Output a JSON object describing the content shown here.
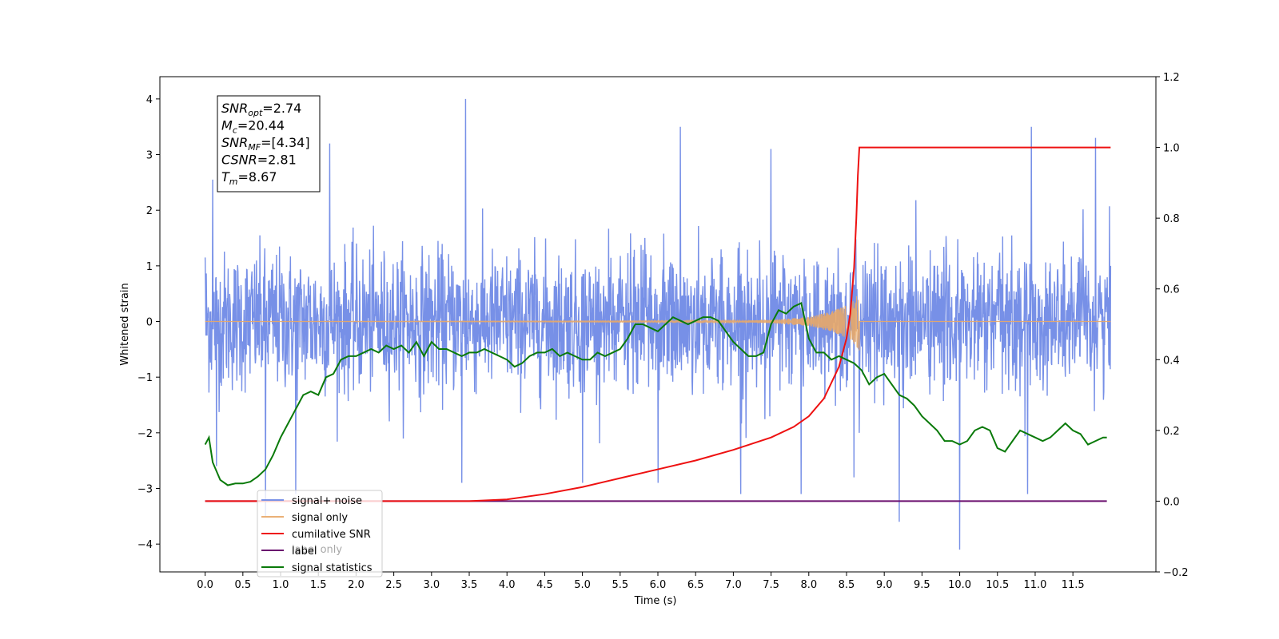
{
  "chart_data": {
    "type": "line",
    "title": "",
    "xlabel": "Time (s)",
    "ylabel": "Whitened strain",
    "xlim": [
      -0.6,
      12.6
    ],
    "ylim": [
      -4.5,
      4.4
    ],
    "y2lim": [
      -0.2,
      1.2
    ],
    "x_ticks": [
      0.0,
      0.5,
      1.0,
      1.5,
      2.0,
      2.5,
      3.0,
      3.5,
      4.0,
      4.5,
      5.0,
      5.5,
      6.0,
      6.5,
      7.0,
      7.5,
      8.0,
      8.5,
      9.0,
      9.5,
      10.0,
      10.5,
      11.0,
      11.5
    ],
    "x_tick_labels": [
      "0.0",
      "0.5",
      "1.0",
      "1.5",
      "2.0",
      "2.5",
      "3.0",
      "3.5",
      "4.0",
      "4.5",
      "5.0",
      "5.5",
      "6.0",
      "6.5",
      "7.0",
      "7.5",
      "8.0",
      "8.5",
      "9.0",
      "9.5",
      "10.0",
      "10.5",
      "11.0",
      "11.5"
    ],
    "y_ticks": [
      -4,
      -3,
      -2,
      -1,
      0,
      1,
      2,
      3,
      4
    ],
    "y_tick_labels": [
      "−4",
      "−3",
      "−2",
      "−1",
      "0",
      "1",
      "2",
      "3",
      "4"
    ],
    "y2_ticks": [
      -0.2,
      0.0,
      0.2,
      0.4,
      0.6,
      0.8,
      1.0,
      1.2
    ],
    "y2_tick_labels": [
      "−0.2",
      "0.0",
      "0.2",
      "0.4",
      "0.6",
      "0.8",
      "1.0",
      "1.2"
    ],
    "grid": false,
    "legend_position": "lower-left",
    "annotation_lines": [
      {
        "base": "SNR",
        "sub": "opt",
        "rest": "=2.74"
      },
      {
        "base": "M",
        "sub": "c",
        "rest": "=20.44"
      },
      {
        "base": "SNR",
        "sub": "MF",
        "rest": "=[4.34]"
      },
      {
        "base": "CSNR",
        "sub": "",
        "rest": "=2.81"
      },
      {
        "base": "T",
        "sub": "m",
        "rest": "=8.67"
      }
    ],
    "series": [
      {
        "name": "signal+ noise",
        "axis": "left",
        "color": "#6b87e5",
        "note_shape": "whitened noise, mostly within ±1.5 with spikes",
        "spikes": [
          [
            0.0,
            1.15
          ],
          [
            0.0,
            -0.55
          ],
          [
            0.1,
            2.55
          ],
          [
            0.15,
            -2.6
          ],
          [
            0.8,
            -3.5
          ],
          [
            1.2,
            -3.1
          ],
          [
            1.65,
            3.2
          ],
          [
            3.45,
            4.0
          ],
          [
            3.4,
            -2.9
          ],
          [
            5.0,
            -2.9
          ],
          [
            6.0,
            -2.9
          ],
          [
            6.3,
            3.5
          ],
          [
            7.1,
            -3.1
          ],
          [
            7.5,
            3.1
          ],
          [
            7.9,
            -3.1
          ],
          [
            8.6,
            -2.8
          ],
          [
            9.2,
            -3.6
          ],
          [
            10.0,
            -4.1
          ],
          [
            10.9,
            -3.1
          ],
          [
            10.95,
            3.5
          ],
          [
            11.8,
            3.3
          ],
          [
            12.0,
            1.0
          ],
          [
            12.0,
            -1.5
          ]
        ],
        "x_range": [
          0.0,
          12.0
        ],
        "typical_amplitude": 1.2
      },
      {
        "name": "signal only",
        "axis": "left",
        "color": "#e8a868",
        "x_range": [
          0.0,
          12.0
        ],
        "chirp_peak_time": 8.67,
        "chirp_peak_amplitude": 0.5,
        "amplitude_points": [
          [
            0.0,
            0.0
          ],
          [
            7.0,
            0.01
          ],
          [
            7.5,
            0.03
          ],
          [
            8.0,
            0.08
          ],
          [
            8.3,
            0.18
          ],
          [
            8.55,
            0.32
          ],
          [
            8.67,
            0.52
          ],
          [
            8.7,
            0.0
          ],
          [
            12.0,
            0.0
          ]
        ]
      },
      {
        "name": "cumilative SNR",
        "axis": "right",
        "color": "#ee1111",
        "x": [
          0.0,
          3.5,
          4.0,
          4.5,
          5.0,
          5.5,
          6.0,
          6.5,
          7.0,
          7.5,
          7.8,
          8.0,
          8.2,
          8.4,
          8.5,
          8.55,
          8.6,
          8.63,
          8.65,
          8.67,
          12.0
        ],
        "values": [
          0.0,
          0.0,
          0.005,
          0.02,
          0.04,
          0.065,
          0.09,
          0.115,
          0.145,
          0.18,
          0.21,
          0.24,
          0.29,
          0.38,
          0.46,
          0.53,
          0.66,
          0.8,
          0.92,
          1.0,
          1.0
        ]
      },
      {
        "name": "label",
        "axis": "right",
        "color": "#6a0f6e",
        "x": [
          0.0,
          11.95
        ],
        "values": [
          0.0,
          0.0
        ]
      },
      {
        "name": "label only",
        "axis": "right",
        "hidden_in_plot": true,
        "x": [],
        "values": []
      },
      {
        "name": "signal statistics",
        "axis": "right",
        "color": "#0a7a0a",
        "x": [
          0.0,
          0.05,
          0.1,
          0.2,
          0.3,
          0.4,
          0.5,
          0.6,
          0.7,
          0.8,
          0.9,
          1.0,
          1.1,
          1.2,
          1.3,
          1.4,
          1.5,
          1.6,
          1.7,
          1.8,
          1.9,
          2.0,
          2.1,
          2.2,
          2.3,
          2.4,
          2.5,
          2.6,
          2.7,
          2.8,
          2.9,
          3.0,
          3.1,
          3.2,
          3.3,
          3.4,
          3.5,
          3.6,
          3.7,
          3.8,
          3.9,
          4.0,
          4.1,
          4.2,
          4.3,
          4.4,
          4.5,
          4.6,
          4.7,
          4.8,
          4.9,
          5.0,
          5.1,
          5.2,
          5.3,
          5.4,
          5.5,
          5.6,
          5.7,
          5.8,
          5.9,
          6.0,
          6.1,
          6.2,
          6.3,
          6.4,
          6.5,
          6.6,
          6.7,
          6.8,
          6.9,
          7.0,
          7.1,
          7.2,
          7.3,
          7.4,
          7.5,
          7.6,
          7.7,
          7.8,
          7.9,
          8.0,
          8.1,
          8.2,
          8.3,
          8.4,
          8.5,
          8.6,
          8.7,
          8.8,
          8.9,
          9.0,
          9.1,
          9.2,
          9.3,
          9.4,
          9.5,
          9.6,
          9.7,
          9.8,
          9.9,
          10.0,
          10.1,
          10.2,
          10.3,
          10.4,
          10.5,
          10.6,
          10.7,
          10.8,
          10.9,
          11.0,
          11.1,
          11.2,
          11.3,
          11.4,
          11.5,
          11.6,
          11.7,
          11.8,
          11.9,
          11.95
        ],
        "values": [
          0.16,
          0.18,
          0.11,
          0.06,
          0.045,
          0.05,
          0.05,
          0.055,
          0.07,
          0.09,
          0.13,
          0.18,
          0.22,
          0.26,
          0.3,
          0.31,
          0.3,
          0.35,
          0.36,
          0.4,
          0.41,
          0.41,
          0.42,
          0.43,
          0.42,
          0.44,
          0.43,
          0.44,
          0.42,
          0.45,
          0.41,
          0.45,
          0.43,
          0.43,
          0.42,
          0.41,
          0.42,
          0.42,
          0.43,
          0.42,
          0.41,
          0.4,
          0.38,
          0.39,
          0.41,
          0.42,
          0.42,
          0.43,
          0.41,
          0.42,
          0.41,
          0.4,
          0.4,
          0.42,
          0.41,
          0.42,
          0.43,
          0.46,
          0.5,
          0.5,
          0.49,
          0.48,
          0.5,
          0.52,
          0.51,
          0.5,
          0.51,
          0.52,
          0.52,
          0.51,
          0.48,
          0.45,
          0.43,
          0.41,
          0.41,
          0.42,
          0.5,
          0.54,
          0.53,
          0.55,
          0.56,
          0.46,
          0.42,
          0.42,
          0.4,
          0.41,
          0.4,
          0.39,
          0.37,
          0.33,
          0.35,
          0.36,
          0.33,
          0.3,
          0.29,
          0.27,
          0.24,
          0.22,
          0.2,
          0.17,
          0.17,
          0.16,
          0.17,
          0.2,
          0.21,
          0.2,
          0.15,
          0.14,
          0.17,
          0.2,
          0.19,
          0.18,
          0.17,
          0.18,
          0.2,
          0.22,
          0.2,
          0.19,
          0.16,
          0.17,
          0.18,
          0.18
        ]
      }
    ]
  }
}
